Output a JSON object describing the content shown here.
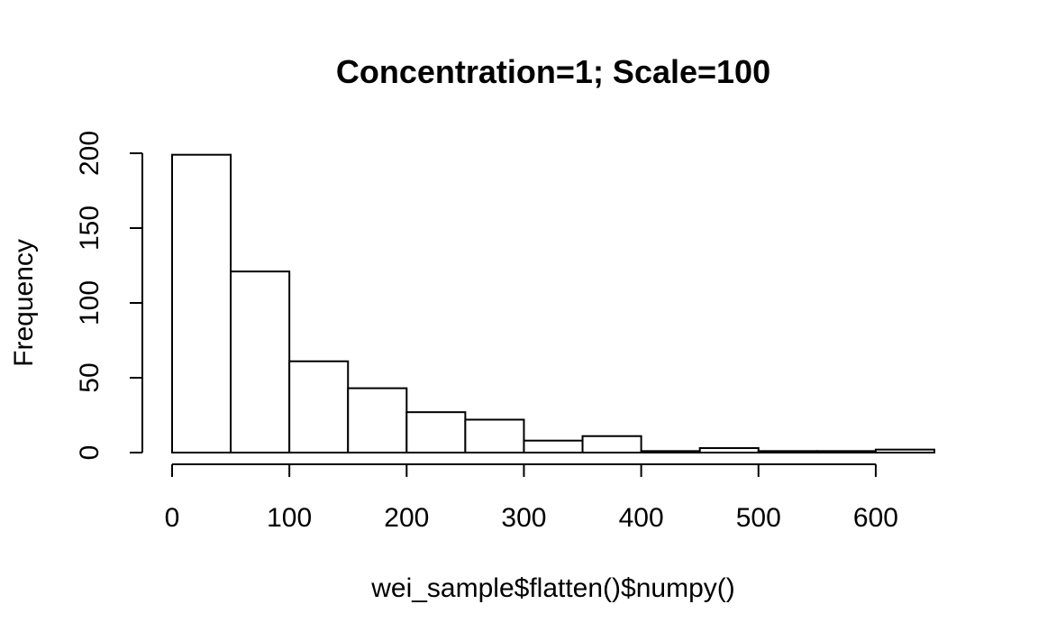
{
  "chart_data": {
    "type": "bar",
    "title": "Concentration=1; Scale=100",
    "xlabel": "wei_sample$flatten()$numpy()",
    "ylabel": "Frequency",
    "bin_edges": [
      0,
      50,
      100,
      150,
      200,
      250,
      300,
      350,
      400,
      450,
      500,
      550,
      600,
      650
    ],
    "values": [
      199,
      121,
      61,
      43,
      27,
      22,
      8,
      11,
      1,
      3,
      1,
      1,
      2
    ],
    "xlim": [
      0,
      650
    ],
    "ylim": [
      0,
      200
    ],
    "x_ticks": [
      0,
      100,
      200,
      300,
      400,
      500,
      600
    ],
    "y_ticks": [
      0,
      50,
      100,
      150,
      200
    ],
    "x_tick_labels": [
      "0",
      "100",
      "200",
      "300",
      "400",
      "500",
      "600"
    ],
    "y_tick_labels": [
      "0",
      "50",
      "100",
      "150",
      "200"
    ],
    "grid": false,
    "legend": "none"
  }
}
